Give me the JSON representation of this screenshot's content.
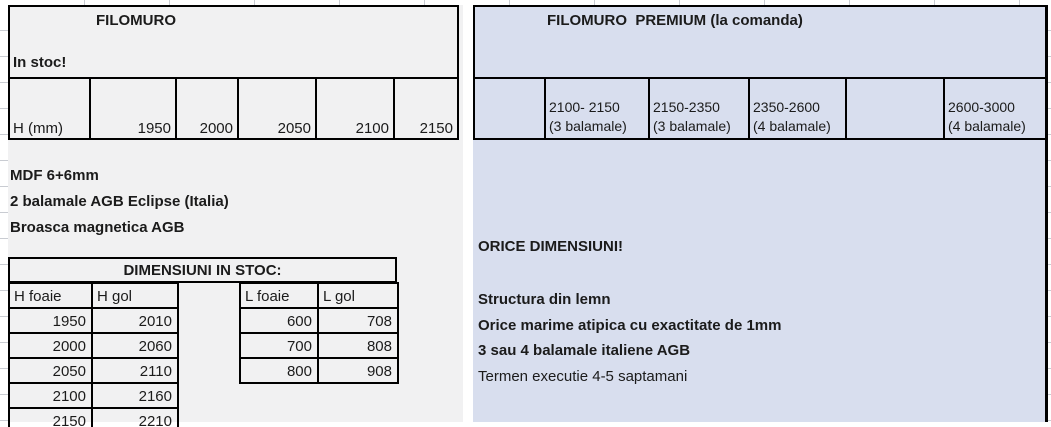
{
  "colors": {
    "stock_bg": "#f1f1f2",
    "premium_bg": "#d8deee",
    "border": "#000000",
    "text": "#1b1b1b"
  },
  "left": {
    "title": "FILOMURO",
    "stock_label": "In stoc!",
    "height_row": {
      "header": "H (mm)",
      "values": [
        "1950",
        "2000",
        "2050",
        "2100",
        "2150"
      ]
    },
    "features": [
      "MDF 6+6mm",
      "2 balamale AGB Eclipse (Italia)",
      "Broasca magnetica AGB"
    ],
    "dimensions_title": "DIMENSIUNI IN STOC:",
    "h_table": {
      "headers": [
        "H foaie",
        "H gol"
      ],
      "rows": [
        [
          "1950",
          "2010"
        ],
        [
          "2000",
          "2060"
        ],
        [
          "2050",
          "2110"
        ],
        [
          "2100",
          "2160"
        ],
        [
          "2150",
          "2210"
        ]
      ]
    },
    "l_table": {
      "headers": [
        "L foaie",
        "L gol"
      ],
      "rows": [
        [
          "600",
          "708"
        ],
        [
          "700",
          "808"
        ],
        [
          "800",
          "908"
        ]
      ]
    }
  },
  "right": {
    "title": "FILOMURO  PREMIUM (la comanda)",
    "range_cells": [
      {
        "line1": "",
        "line2": ""
      },
      {
        "line1": "2100- 2150",
        "line2": "(3 balamale)"
      },
      {
        "line1": "2150-2350",
        "line2": "(3 balamale)"
      },
      {
        "line1": "2350-2600",
        "line2": "(4 balamale)"
      },
      {
        "line1": "",
        "line2": ""
      },
      {
        "line1": "2600-3000",
        "line2": "(4 balamale)"
      }
    ],
    "any_dimensions": "ORICE DIMENSIUNI!",
    "features": [
      "Structura din lemn",
      "Orice marime atipica cu exactitate de 1mm",
      "3 sau 4 balamale italiene AGB",
      "Termen executie 4-5 saptamani"
    ]
  }
}
